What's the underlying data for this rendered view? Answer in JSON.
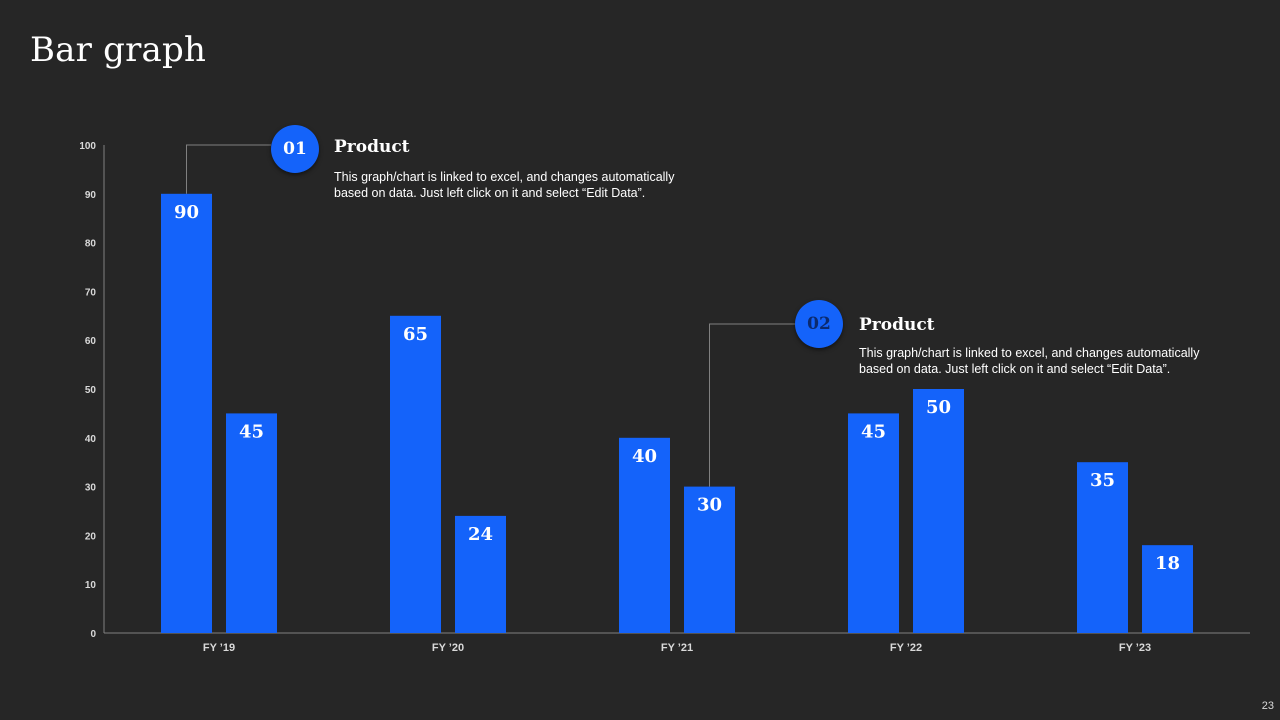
{
  "title": "Bar graph",
  "page_number": "23",
  "colors": {
    "background": "#262626",
    "bar": "#1463fa",
    "axis": "#808080",
    "text": "#ffffff"
  },
  "callouts": [
    {
      "number": "01",
      "title": "Product",
      "text": "This graph/chart is linked to excel, and changes automatically based on data. Just left click on it and select “Edit Data”."
    },
    {
      "number": "02",
      "title": "Product",
      "text": "This graph/chart is linked to excel, and changes automatically based on data. Just left click on it and select “Edit Data”."
    }
  ],
  "chart_data": {
    "type": "bar",
    "title": "",
    "xlabel": "",
    "ylabel": "",
    "categories": [
      "FY ’19",
      "FY ’20",
      "FY ’21",
      "FY ’22",
      "FY ’23"
    ],
    "series": [
      {
        "values": [
          90,
          65,
          40,
          45,
          35
        ]
      },
      {
        "values": [
          45,
          24,
          30,
          50,
          18
        ]
      }
    ],
    "ylim": [
      0,
      100
    ],
    "yticks": [
      0,
      10,
      20,
      30,
      40,
      50,
      60,
      70,
      80,
      90,
      100
    ],
    "grid": false,
    "legend": "none",
    "data_labels": true
  }
}
